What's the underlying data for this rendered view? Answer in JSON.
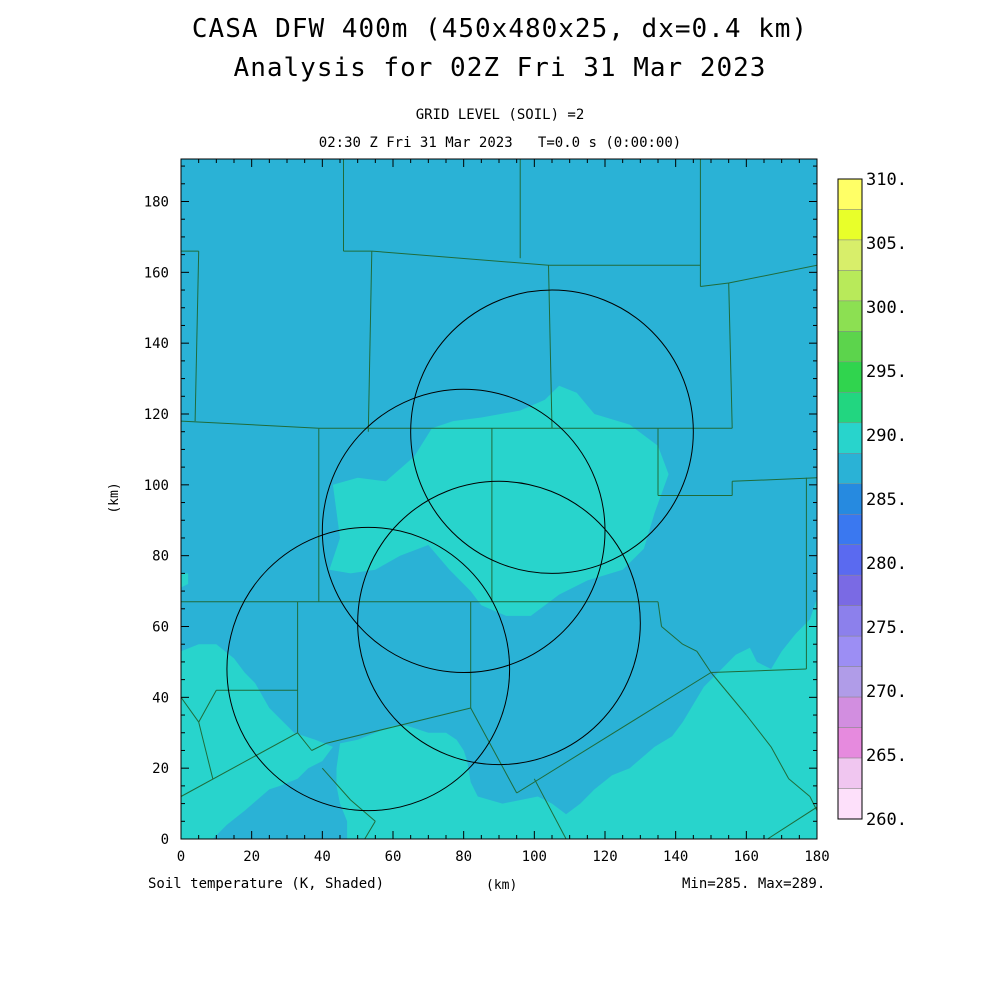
{
  "header": {
    "title_line1": "CASA DFW 400m (450x480x25, dx=0.4 km)",
    "title_line2": "Analysis for 02Z Fri 31 Mar 2023",
    "subtitle_line1": "GRID LEVEL (SOIL) =2",
    "subtitle_line2": "02:30 Z Fri 31 Mar 2023   T=0.0 s (0:00:00)"
  },
  "footer": {
    "variable_label": "Soil temperature (K, Shaded)",
    "x_unit": "(km)",
    "min_max": "Min=285. Max=289."
  },
  "colors": {
    "field_low": "#2ab2d6",
    "field_high": "#28d4cc",
    "county_lines": "#1f6b3a",
    "radar_rings": "#000000"
  },
  "chart_data": {
    "type": "heatmap",
    "xlabel": "(km)",
    "ylabel": "(km)",
    "xlim": [
      0,
      180
    ],
    "ylim": [
      0,
      192
    ],
    "x_ticks": [
      0,
      20,
      40,
      60,
      80,
      100,
      120,
      140,
      160,
      180
    ],
    "y_ticks": [
      0,
      20,
      40,
      60,
      80,
      100,
      120,
      140,
      160,
      180
    ],
    "field_min": 285,
    "field_max": 289,
    "regions": [
      {
        "level": 288.5,
        "color": "#28d4cc",
        "polygon": [
          [
            43,
            100
          ],
          [
            50,
            102
          ],
          [
            58,
            101
          ],
          [
            66,
            108
          ],
          [
            71,
            116
          ],
          [
            77,
            118
          ],
          [
            85,
            119
          ],
          [
            96,
            121
          ],
          [
            103,
            124
          ],
          [
            107,
            128
          ],
          [
            112,
            126
          ],
          [
            117,
            120
          ],
          [
            127,
            117
          ],
          [
            135,
            111
          ],
          [
            138,
            103
          ],
          [
            134,
            92
          ],
          [
            131,
            82
          ],
          [
            125,
            76
          ],
          [
            115,
            73
          ],
          [
            107,
            69
          ],
          [
            99,
            63
          ],
          [
            92,
            63
          ],
          [
            85,
            66
          ],
          [
            82,
            70
          ],
          [
            76,
            76
          ],
          [
            70,
            83
          ],
          [
            62,
            80
          ],
          [
            55,
            76
          ],
          [
            48,
            75
          ],
          [
            42,
            76
          ],
          [
            45,
            85
          ]
        ]
      },
      {
        "level": 288.5,
        "color": "#28d4cc",
        "polygon": [
          [
            0,
            53
          ],
          [
            5,
            55
          ],
          [
            10,
            55
          ],
          [
            15,
            51
          ],
          [
            18,
            47
          ],
          [
            21,
            44
          ],
          [
            25,
            37
          ],
          [
            32,
            30
          ],
          [
            38,
            28
          ],
          [
            43,
            26
          ],
          [
            40,
            22
          ],
          [
            36,
            20
          ],
          [
            33,
            17
          ],
          [
            28,
            15
          ],
          [
            25,
            14
          ],
          [
            18,
            8
          ],
          [
            13,
            4
          ],
          [
            9,
            0
          ],
          [
            0,
            0
          ]
        ]
      },
      {
        "level": 288.5,
        "color": "#28d4cc",
        "polygon": [
          [
            45,
            27
          ],
          [
            50,
            28
          ],
          [
            55,
            30
          ],
          [
            60,
            32
          ],
          [
            64,
            32
          ],
          [
            70,
            30
          ],
          [
            75,
            30
          ],
          [
            78,
            28
          ],
          [
            80,
            25
          ],
          [
            81,
            22
          ],
          [
            82,
            16
          ],
          [
            84,
            12
          ],
          [
            91,
            10
          ],
          [
            101,
            12
          ],
          [
            105,
            10
          ],
          [
            109,
            7
          ],
          [
            113,
            10
          ],
          [
            117,
            14
          ],
          [
            122,
            18
          ],
          [
            127,
            20
          ],
          [
            134,
            26
          ],
          [
            139,
            29
          ],
          [
            142,
            33
          ],
          [
            145,
            38
          ],
          [
            148,
            43
          ],
          [
            153,
            48
          ],
          [
            157,
            52
          ],
          [
            161,
            54
          ],
          [
            163,
            50
          ],
          [
            167,
            48
          ],
          [
            170,
            53
          ],
          [
            174,
            58
          ],
          [
            178,
            62
          ],
          [
            180,
            68
          ],
          [
            180,
            0
          ],
          [
            47,
            0
          ],
          [
            47,
            5
          ],
          [
            45,
            10
          ],
          [
            44,
            15
          ],
          [
            44,
            20
          ]
        ]
      },
      {
        "level": 288.5,
        "color": "#28d4cc",
        "polygon": [
          [
            0,
            75
          ],
          [
            2,
            75
          ],
          [
            2,
            72
          ],
          [
            0,
            71
          ]
        ]
      }
    ],
    "county_boundaries": [
      [
        [
          46,
          192
        ],
        [
          46,
          166
        ]
      ],
      [
        [
          46,
          166
        ],
        [
          54,
          166
        ]
      ],
      [
        [
          54,
          166
        ],
        [
          53,
          115
        ]
      ],
      [
        [
          54,
          166
        ],
        [
          104,
          162
        ]
      ],
      [
        [
          104,
          162
        ],
        [
          105,
          116
        ]
      ],
      [
        [
          104,
          162
        ],
        [
          147,
          162
        ]
      ],
      [
        [
          96,
          192
        ],
        [
          96,
          164
        ]
      ],
      [
        [
          147,
          192
        ],
        [
          147,
          156
        ]
      ],
      [
        [
          147,
          156
        ],
        [
          155,
          157
        ]
      ],
      [
        [
          155,
          157
        ],
        [
          180,
          162
        ]
      ],
      [
        [
          155,
          157
        ],
        [
          156,
          116
        ]
      ],
      [
        [
          0,
          166
        ],
        [
          5,
          166
        ]
      ],
      [
        [
          5,
          166
        ],
        [
          4,
          118
        ]
      ],
      [
        [
          0,
          118
        ],
        [
          39,
          116
        ]
      ],
      [
        [
          39,
          116
        ],
        [
          156,
          116
        ]
      ],
      [
        [
          39,
          116
        ],
        [
          39,
          67
        ]
      ],
      [
        [
          88,
          116
        ],
        [
          88,
          67
        ]
      ],
      [
        [
          135,
          116
        ],
        [
          135,
          97
        ]
      ],
      [
        [
          135,
          97
        ],
        [
          156,
          97
        ]
      ],
      [
        [
          156,
          97
        ],
        [
          156,
          101
        ]
      ],
      [
        [
          156,
          101
        ],
        [
          180,
          102
        ]
      ],
      [
        [
          177,
          102
        ],
        [
          177,
          48
        ]
      ],
      [
        [
          0,
          67
        ],
        [
          135,
          67
        ]
      ],
      [
        [
          33,
          67
        ],
        [
          33,
          30
        ]
      ],
      [
        [
          82,
          67
        ],
        [
          82,
          37
        ]
      ],
      [
        [
          135,
          67
        ],
        [
          136,
          60
        ]
      ],
      [
        [
          136,
          60
        ],
        [
          142,
          55
        ]
      ],
      [
        [
          142,
          55
        ],
        [
          146,
          53
        ]
      ],
      [
        [
          146,
          53
        ],
        [
          150,
          47
        ]
      ],
      [
        [
          150,
          47
        ],
        [
          177,
          48
        ]
      ],
      [
        [
          10,
          42
        ],
        [
          33,
          42
        ]
      ],
      [
        [
          0,
          40
        ],
        [
          5,
          33
        ]
      ],
      [
        [
          5,
          33
        ],
        [
          10,
          42
        ]
      ],
      [
        [
          5,
          33
        ],
        [
          9,
          17
        ]
      ],
      [
        [
          0,
          12
        ],
        [
          33,
          30
        ]
      ],
      [
        [
          33,
          30
        ],
        [
          37,
          25
        ]
      ],
      [
        [
          37,
          25
        ],
        [
          41,
          27
        ]
      ],
      [
        [
          41,
          27
        ],
        [
          82,
          37
        ]
      ],
      [
        [
          82,
          37
        ],
        [
          95,
          13
        ]
      ],
      [
        [
          95,
          13
        ],
        [
          150,
          47
        ]
      ],
      [
        [
          100,
          17
        ],
        [
          109,
          0
        ]
      ],
      [
        [
          40,
          20
        ],
        [
          48,
          11
        ]
      ],
      [
        [
          48,
          11
        ],
        [
          55,
          5
        ]
      ],
      [
        [
          55,
          5
        ],
        [
          52,
          0
        ]
      ],
      [
        [
          150,
          47
        ],
        [
          160,
          35
        ]
      ],
      [
        [
          160,
          35
        ],
        [
          167,
          26
        ]
      ],
      [
        [
          167,
          26
        ],
        [
          172,
          17
        ]
      ],
      [
        [
          172,
          17
        ],
        [
          178,
          12
        ]
      ],
      [
        [
          178,
          12
        ],
        [
          180,
          8
        ]
      ],
      [
        [
          166,
          0
        ],
        [
          180,
          9
        ]
      ]
    ],
    "radar_rings": [
      {
        "center": [
          105,
          115
        ],
        "radius": 40
      },
      {
        "center": [
          80,
          87
        ],
        "radius": 40
      },
      {
        "center": [
          90,
          61
        ],
        "radius": 40
      },
      {
        "center": [
          53,
          48
        ],
        "radius": 40
      }
    ],
    "colorbar": {
      "labels": [
        "310.",
        "305.",
        "300.",
        "295.",
        "290.",
        "285.",
        "280.",
        "275.",
        "270.",
        "265.",
        "260."
      ],
      "colors_top_to_bottom": [
        "#ffff66",
        "#e8ff2a",
        "#d8ee6a",
        "#b8ea5a",
        "#8ce052",
        "#5cd44c",
        "#30d44e",
        "#22d680",
        "#28d4cc",
        "#2ab2d6",
        "#268ae0",
        "#3a78f0",
        "#5a6af0",
        "#7a6ae4",
        "#8c80ec",
        "#9c8ef4",
        "#b09ce8",
        "#d28ee0",
        "#e68ade",
        "#f0c6f0",
        "#fde0fa"
      ]
    }
  }
}
